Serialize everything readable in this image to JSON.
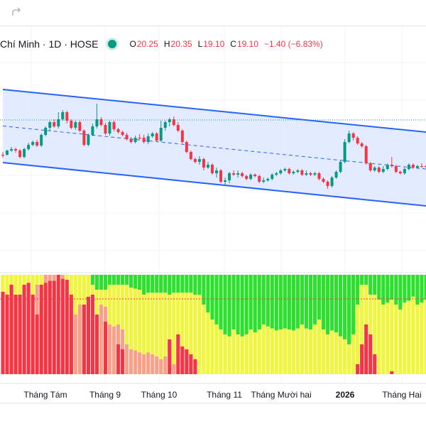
{
  "toolbar": {
    "redo_icon": "redo-icon"
  },
  "legend": {
    "symbol": "Chí Minh · 1D · HOSE",
    "status_color": "#089981",
    "ohlc": [
      {
        "key": "O",
        "value": "20.25"
      },
      {
        "key": "H",
        "value": "20.35"
      },
      {
        "key": "L",
        "value": "19.10"
      },
      {
        "key": "C",
        "value": "19.10"
      },
      {
        "key": "",
        "value": "−1.40 (−6.83%)"
      }
    ]
  },
  "chart_data": {
    "type": "candlestick",
    "x_ticks": [
      {
        "label": "Tháng Tám",
        "bold": false
      },
      {
        "label": "Tháng 9",
        "bold": false
      },
      {
        "label": "Tháng 10",
        "bold": false
      },
      {
        "label": "Tháng 11",
        "bold": false
      },
      {
        "label": "Tháng Mười hai",
        "bold": false
      },
      {
        "label": "2026",
        "bold": true
      },
      {
        "label": "Tháng Hai",
        "bold": false
      }
    ],
    "channel": {
      "upper": [
        [
          0,
          126
        ],
        [
          99,
          186
        ]
      ],
      "lower": [
        [
          0,
          229
        ],
        [
          99,
          290
        ]
      ],
      "mid": [
        [
          0,
          177.5
        ],
        [
          99,
          238
        ]
      ],
      "fill": "#dde8ff",
      "line_color": "#2962ff"
    },
    "candles": [
      [
        218,
        218,
        222,
        214
      ],
      [
        218,
        212,
        219,
        211
      ],
      [
        212,
        210,
        214,
        207
      ],
      [
        210,
        212,
        215,
        208
      ],
      [
        212,
        221,
        223,
        210
      ],
      [
        221,
        210,
        223,
        208
      ],
      [
        210,
        204,
        212,
        201
      ],
      [
        204,
        200,
        206,
        198
      ],
      [
        200,
        205,
        207,
        197
      ],
      [
        205,
        190,
        207,
        188
      ],
      [
        190,
        180,
        192,
        178
      ],
      [
        180,
        172,
        184,
        170
      ],
      [
        172,
        178,
        180,
        168
      ],
      [
        178,
        168,
        181,
        158
      ],
      [
        168,
        158,
        170,
        155
      ],
      [
        158,
        170,
        174,
        156
      ],
      [
        170,
        180,
        182,
        168
      ],
      [
        180,
        172,
        183,
        170
      ],
      [
        172,
        184,
        186,
        170
      ],
      [
        184,
        204,
        206,
        182
      ],
      [
        204,
        190,
        206,
        188
      ],
      [
        190,
        178,
        192,
        174
      ],
      [
        178,
        168,
        181,
        146
      ],
      [
        168,
        176,
        178,
        165
      ],
      [
        176,
        188,
        190,
        173
      ],
      [
        188,
        172,
        191,
        170
      ],
      [
        172,
        182,
        185,
        170
      ],
      [
        182,
        186,
        188,
        180
      ],
      [
        186,
        190,
        192,
        184
      ],
      [
        190,
        196,
        198,
        187
      ],
      [
        196,
        200,
        202,
        193
      ],
      [
        200,
        194,
        202,
        191
      ],
      [
        194,
        194,
        196,
        189
      ],
      [
        194,
        200,
        202,
        190
      ],
      [
        200,
        192,
        203,
        188
      ],
      [
        192,
        188,
        194,
        186
      ],
      [
        188,
        198,
        200,
        186
      ],
      [
        198,
        180,
        200,
        170
      ],
      [
        180,
        172,
        184,
        170
      ],
      [
        172,
        168,
        178,
        166
      ],
      [
        168,
        176,
        178,
        164
      ],
      [
        176,
        184,
        186,
        172
      ],
      [
        184,
        200,
        202,
        182
      ],
      [
        200,
        214,
        216,
        198
      ],
      [
        214,
        224,
        226,
        212
      ],
      [
        224,
        228,
        230,
        222
      ],
      [
        228,
        224,
        232,
        220
      ],
      [
        224,
        236,
        240,
        222
      ],
      [
        236,
        232,
        238,
        228
      ],
      [
        232,
        244,
        246,
        230
      ],
      [
        244,
        240,
        250,
        236
      ],
      [
        240,
        256,
        258,
        238
      ],
      [
        256,
        254,
        260,
        250
      ],
      [
        254,
        244,
        258,
        242
      ],
      [
        244,
        246,
        248,
        240
      ],
      [
        246,
        244,
        250,
        240
      ],
      [
        244,
        248,
        250,
        242
      ],
      [
        248,
        252,
        254,
        246
      ],
      [
        252,
        246,
        254,
        244
      ],
      [
        246,
        248,
        250,
        244
      ],
      [
        248,
        256,
        258,
        246
      ],
      [
        256,
        254,
        258,
        250
      ],
      [
        254,
        252,
        256,
        250
      ],
      [
        252,
        246,
        254,
        244
      ],
      [
        246,
        244,
        248,
        242
      ],
      [
        244,
        240,
        246,
        238
      ],
      [
        240,
        238,
        242,
        236
      ],
      [
        238,
        244,
        246,
        236
      ],
      [
        244,
        242,
        246,
        240
      ],
      [
        242,
        240,
        244,
        238
      ],
      [
        240,
        246,
        248,
        238
      ],
      [
        246,
        244,
        248,
        240
      ],
      [
        244,
        246,
        248,
        242
      ],
      [
        246,
        244,
        248,
        242
      ],
      [
        244,
        252,
        254,
        242
      ],
      [
        252,
        256,
        258,
        250
      ],
      [
        256,
        262,
        266,
        254
      ],
      [
        262,
        250,
        264,
        248
      ],
      [
        250,
        242,
        252,
        240
      ],
      [
        242,
        228,
        244,
        226
      ],
      [
        228,
        200,
        230,
        196
      ],
      [
        200,
        188,
        202,
        184
      ],
      [
        188,
        194,
        198,
        186
      ],
      [
        194,
        202,
        204,
        192
      ],
      [
        202,
        206,
        208,
        200
      ],
      [
        206,
        230,
        232,
        204
      ],
      [
        230,
        240,
        242,
        228
      ],
      [
        240,
        236,
        242,
        234
      ],
      [
        236,
        242,
        244,
        234
      ],
      [
        242,
        238,
        244,
        234
      ],
      [
        238,
        232,
        240,
        230
      ],
      [
        232,
        234,
        236,
        221
      ],
      [
        234,
        242,
        244,
        232
      ],
      [
        242,
        244,
        246,
        240
      ],
      [
        244,
        238,
        246,
        236
      ],
      [
        238,
        232,
        240,
        230
      ],
      [
        232,
        236,
        238,
        230
      ],
      [
        236,
        234,
        238,
        232
      ],
      [
        234,
        234,
        236,
        230
      ],
      [
        234,
        234,
        236,
        232
      ]
    ],
    "indicator": {
      "levels": [
        "#f23645",
        "#f7a08a",
        "#f0f53f",
        "#2ee02e"
      ],
      "bars": [
        [
          0.83,
          0,
          0.17,
          0
        ],
        [
          0.8,
          0,
          0.2,
          0
        ],
        [
          0.9,
          0,
          0.1,
          0
        ],
        [
          0.8,
          0,
          0.2,
          0
        ],
        [
          0.8,
          0,
          0.2,
          0
        ],
        [
          0.9,
          0,
          0.1,
          0
        ],
        [
          0.92,
          0,
          0.08,
          0
        ],
        [
          0.8,
          0,
          0.2,
          0
        ],
        [
          0.6,
          0.3,
          0.1,
          0
        ],
        [
          0.9,
          0,
          0.1,
          0
        ],
        [
          0.92,
          0.08,
          0,
          0
        ],
        [
          0.94,
          0.06,
          0,
          0
        ],
        [
          0.94,
          0.06,
          0,
          0
        ],
        [
          1.0,
          0,
          0,
          0
        ],
        [
          0.96,
          0.04,
          0,
          0
        ],
        [
          0.95,
          0,
          0.05,
          0
        ],
        [
          0.8,
          0,
          0.2,
          0
        ],
        [
          0,
          0.6,
          0.4,
          0
        ],
        [
          0,
          0.7,
          0.3,
          0
        ],
        [
          0.7,
          0,
          0.3,
          0
        ],
        [
          0.78,
          0,
          0.22,
          0
        ],
        [
          0.8,
          0,
          0.1,
          0.1
        ],
        [
          0.6,
          0,
          0.25,
          0.15
        ],
        [
          0,
          0.7,
          0.15,
          0.15
        ],
        [
          0.53,
          0.15,
          0.17,
          0.15
        ],
        [
          0,
          0.5,
          0.4,
          0.1
        ],
        [
          0,
          0.48,
          0.42,
          0.1
        ],
        [
          0.3,
          0.2,
          0.4,
          0.1
        ],
        [
          0.25,
          0.2,
          0.45,
          0.1
        ],
        [
          0,
          0.3,
          0.6,
          0.1
        ],
        [
          0,
          0.25,
          0.62,
          0.13
        ],
        [
          0,
          0.24,
          0.62,
          0.14
        ],
        [
          0,
          0.22,
          0.63,
          0.15
        ],
        [
          0,
          0.2,
          0.6,
          0.2
        ],
        [
          0,
          0.22,
          0.6,
          0.18
        ],
        [
          0,
          0.2,
          0.62,
          0.18
        ],
        [
          0,
          0.18,
          0.64,
          0.18
        ],
        [
          0,
          0.15,
          0.67,
          0.18
        ],
        [
          0,
          0.18,
          0.64,
          0.18
        ],
        [
          0.35,
          0,
          0.45,
          0.2
        ],
        [
          0,
          0.1,
          0.72,
          0.18
        ],
        [
          0.4,
          0,
          0.42,
          0.18
        ],
        [
          0.28,
          0,
          0.54,
          0.18
        ],
        [
          0.25,
          0,
          0.57,
          0.18
        ],
        [
          0.2,
          0,
          0.62,
          0.18
        ],
        [
          0.15,
          0,
          0.65,
          0.2
        ],
        [
          0,
          0,
          0.8,
          0.2
        ],
        [
          0,
          0,
          0.7,
          0.3
        ],
        [
          0,
          0,
          0.62,
          0.38
        ],
        [
          0,
          0,
          0.55,
          0.45
        ],
        [
          0,
          0,
          0.5,
          0.5
        ],
        [
          0,
          0,
          0.45,
          0.55
        ],
        [
          0,
          0,
          0.4,
          0.6
        ],
        [
          0,
          0,
          0.38,
          0.62
        ],
        [
          0,
          0,
          0.45,
          0.55
        ],
        [
          0,
          0,
          0.4,
          0.6
        ],
        [
          0,
          0,
          0.38,
          0.62
        ],
        [
          0,
          0,
          0.4,
          0.6
        ],
        [
          0,
          0,
          0.45,
          0.55
        ],
        [
          0,
          0,
          0.42,
          0.58
        ],
        [
          0,
          0,
          0.45,
          0.55
        ],
        [
          0,
          0,
          0.5,
          0.5
        ],
        [
          0,
          0,
          0.48,
          0.52
        ],
        [
          0,
          0,
          0.46,
          0.54
        ],
        [
          0,
          0,
          0.44,
          0.56
        ],
        [
          0,
          0,
          0.45,
          0.55
        ],
        [
          0,
          0,
          0.46,
          0.54
        ],
        [
          0,
          0,
          0.45,
          0.55
        ],
        [
          0,
          0,
          0.44,
          0.56
        ],
        [
          0,
          0,
          0.46,
          0.54
        ],
        [
          0,
          0,
          0.5,
          0.5
        ],
        [
          0,
          0,
          0.46,
          0.54
        ],
        [
          0,
          0,
          0.45,
          0.55
        ],
        [
          0,
          0,
          0.5,
          0.5
        ],
        [
          0,
          0,
          0.55,
          0.45
        ],
        [
          0,
          0,
          0.45,
          0.55
        ],
        [
          0,
          0,
          0.4,
          0.6
        ],
        [
          0,
          0,
          0.44,
          0.56
        ],
        [
          0,
          0,
          0.42,
          0.58
        ],
        [
          0,
          0,
          0.38,
          0.62
        ],
        [
          0,
          0,
          0.35,
          0.65
        ],
        [
          0,
          0,
          0.3,
          0.7
        ],
        [
          0,
          0,
          0.4,
          0.6
        ],
        [
          0.1,
          0,
          0.6,
          0.3
        ],
        [
          0.3,
          0,
          0.6,
          0.1
        ],
        [
          0.5,
          0,
          0.4,
          0.1
        ],
        [
          0.4,
          0,
          0.4,
          0.2
        ],
        [
          0.2,
          0,
          0.6,
          0.2
        ],
        [
          0,
          0,
          0.75,
          0.25
        ],
        [
          0,
          0,
          0.7,
          0.3
        ],
        [
          0,
          0,
          0.72,
          0.28
        ],
        [
          0.03,
          0,
          0.72,
          0.25
        ],
        [
          0,
          0,
          0.7,
          0.3
        ],
        [
          0,
          0,
          0.65,
          0.35
        ],
        [
          0,
          0,
          0.72,
          0.28
        ],
        [
          0,
          0,
          0.74,
          0.26
        ],
        [
          0,
          0,
          0.78,
          0.22
        ],
        [
          0,
          0,
          0.7,
          0.3
        ],
        [
          0,
          0,
          0.72,
          0.28
        ],
        [
          0,
          0,
          0.75,
          0.25
        ]
      ]
    }
  }
}
